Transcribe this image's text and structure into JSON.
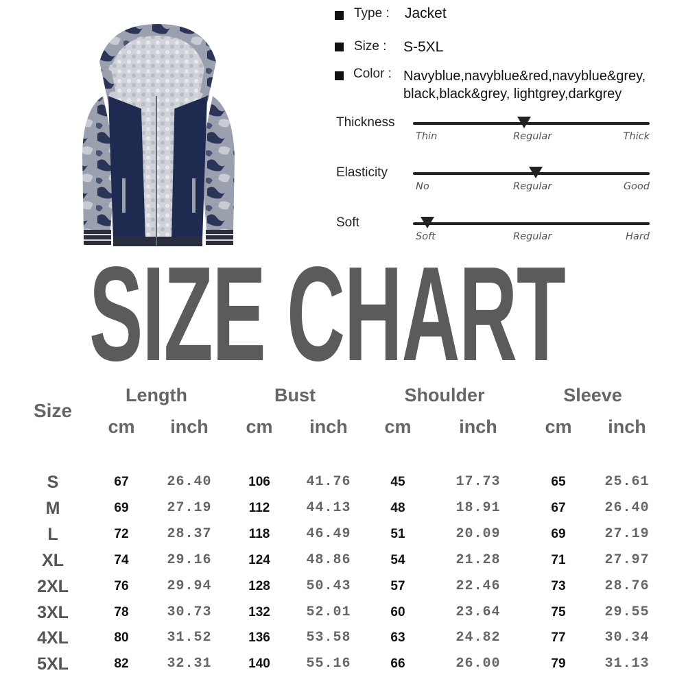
{
  "specs": {
    "type_label": "Type :",
    "type_value": "Jacket",
    "size_label": "Size :",
    "size_value": "S-5XL",
    "color_label": "Color :",
    "color_line1": "Navyblue,navyblue&red,navyblue&grey,",
    "color_line2": "black,black&grey, lightgrey,darkgrey"
  },
  "attributes": [
    {
      "label": "Thickness",
      "low": "Thin",
      "mid": "Regular",
      "high": "Thick",
      "level": 0.47
    },
    {
      "label": "Elasticity",
      "low": "No",
      "mid": "Regular",
      "high": "Good",
      "level": 0.52
    },
    {
      "label": "Soft",
      "low": "Soft",
      "mid": "Regular",
      "high": "Hard",
      "level": 0.06
    }
  ],
  "title": "SIZE CHART",
  "table": {
    "size_header": "Size",
    "groups": [
      "Length",
      "Bust",
      "Shoulder",
      "Sleeve"
    ],
    "units": [
      "cm",
      "inch",
      "cm",
      "inch",
      "cm",
      "inch",
      "cm",
      "inch"
    ],
    "rows": [
      [
        "S",
        "67",
        "26.40",
        "106",
        "41.76",
        "45",
        "17.73",
        "65",
        "25.61"
      ],
      [
        "M",
        "69",
        "27.19",
        "112",
        "44.13",
        "48",
        "18.91",
        "67",
        "26.40"
      ],
      [
        "L",
        "72",
        "28.37",
        "118",
        "46.49",
        "51",
        "20.09",
        "69",
        "27.19"
      ],
      [
        "XL",
        "74",
        "29.16",
        "124",
        "48.86",
        "54",
        "21.28",
        "71",
        "27.97"
      ],
      [
        "2XL",
        "76",
        "29.94",
        "128",
        "50.43",
        "57",
        "22.46",
        "73",
        "28.76"
      ],
      [
        "3XL",
        "78",
        "30.73",
        "132",
        "52.01",
        "60",
        "23.64",
        "75",
        "29.55"
      ],
      [
        "4XL",
        "80",
        "31.52",
        "136",
        "53.58",
        "63",
        "24.82",
        "77",
        "30.34"
      ],
      [
        "5XL",
        "82",
        "32.31",
        "140",
        "55.16",
        "66",
        "26.00",
        "79",
        "31.13"
      ]
    ]
  },
  "colors": {
    "title": "#5b5b5b",
    "jacket_body": "#1e2a4f",
    "fleece": "#c9ccd2",
    "camo": "#8f96a6"
  }
}
